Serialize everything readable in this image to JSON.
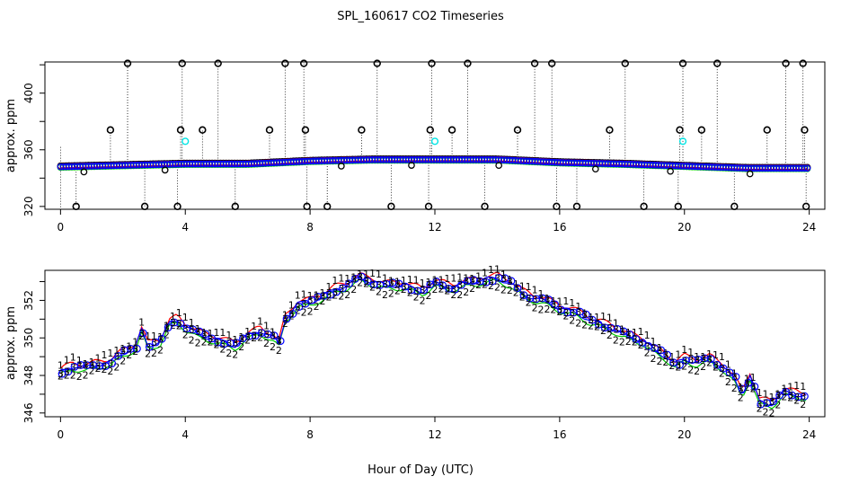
{
  "title": "SPL_160617  CO2 Timeseries",
  "colors": {
    "series1": "#ff0000",
    "series2": "#00cc00",
    "series3": "#0000ff",
    "outline": "#000000",
    "cyan": "#00e5e5"
  },
  "chart_data": [
    {
      "type": "scatter",
      "panel": "top",
      "ylabel": "approx. ppm",
      "xlabel": "",
      "xlim": [
        -0.5,
        24.5
      ],
      "ylim": [
        318,
        422
      ],
      "xticks": [
        0,
        4,
        8,
        12,
        16,
        20,
        24
      ],
      "yticks": [
        320,
        360,
        400
      ],
      "baseline": [
        [
          0,
          348
        ],
        [
          1,
          348.5
        ],
        [
          2,
          349
        ],
        [
          3,
          349.5
        ],
        [
          4,
          350
        ],
        [
          6,
          350
        ],
        [
          7,
          351
        ],
        [
          8,
          352
        ],
        [
          10,
          353
        ],
        [
          12,
          353
        ],
        [
          14,
          353
        ],
        [
          16,
          351
        ],
        [
          18,
          350
        ],
        [
          20,
          348.5
        ],
        [
          22,
          347
        ],
        [
          24,
          347
        ]
      ],
      "spikes_high": [
        2.15,
        3.9,
        5.05,
        7.2,
        7.8,
        10.15,
        11.9,
        13.05,
        15.2,
        15.75,
        18.1,
        19.95,
        21.05,
        23.25,
        23.8
      ],
      "spikes_mid": [
        1.6,
        3.85,
        4.55,
        6.7,
        7.85,
        9.65,
        11.85,
        12.55,
        14.65,
        17.6,
        19.85,
        20.55,
        22.65,
        23.85
      ],
      "spikes_low": [
        0.5,
        2.7,
        3.75,
        5.6,
        7.9,
        8.55,
        10.6,
        11.8,
        13.6,
        15.9,
        16.55,
        18.7,
        19.8,
        21.6,
        23.9
      ],
      "cyan_points": [
        [
          4.0,
          366
        ],
        [
          12.0,
          366
        ],
        [
          19.95,
          366
        ]
      ],
      "high_value": 421,
      "mid_value": 374,
      "low_value": 320
    },
    {
      "type": "line",
      "panel": "bottom",
      "ylabel": "approx. ppm",
      "xlabel": "Hour of Day (UTC)",
      "xlim": [
        -0.5,
        24.5
      ],
      "ylim": [
        345.8,
        353.6
      ],
      "xticks": [
        0,
        4,
        8,
        12,
        16,
        20,
        24
      ],
      "yticks": [
        346,
        348,
        350,
        352
      ],
      "series": [
        {
          "name": "1",
          "offset": 0.35
        },
        {
          "name": "2",
          "offset": -0.35
        },
        {
          "name": "3",
          "offset": 0.0
        }
      ],
      "profile": [
        [
          0.0,
          348.2
        ],
        [
          0.4,
          348.5
        ],
        [
          0.8,
          348.4
        ],
        [
          1.2,
          348.6
        ],
        [
          1.6,
          348.7
        ],
        [
          2.0,
          349.2
        ],
        [
          2.4,
          349.5
        ],
        [
          2.6,
          350.4
        ],
        [
          2.8,
          349.6
        ],
        [
          3.2,
          349.8
        ],
        [
          3.5,
          350.8
        ],
        [
          3.75,
          351.0
        ],
        [
          4.0,
          350.6
        ],
        [
          4.4,
          350.2
        ],
        [
          5.0,
          349.9
        ],
        [
          5.6,
          349.6
        ],
        [
          6.0,
          350.1
        ],
        [
          6.4,
          350.4
        ],
        [
          6.8,
          350.0
        ],
        [
          7.0,
          349.7
        ],
        [
          7.2,
          351.0
        ],
        [
          7.6,
          351.8
        ],
        [
          8.0,
          351.9
        ],
        [
          8.4,
          352.2
        ],
        [
          8.8,
          352.6
        ],
        [
          9.2,
          352.8
        ],
        [
          9.6,
          353.2
        ],
        [
          10.0,
          353.0
        ],
        [
          10.4,
          352.8
        ],
        [
          11.0,
          352.8
        ],
        [
          11.6,
          352.5
        ],
        [
          12.0,
          352.9
        ],
        [
          12.6,
          352.7
        ],
        [
          13.0,
          352.9
        ],
        [
          13.6,
          353.1
        ],
        [
          14.0,
          353.2
        ],
        [
          14.4,
          352.9
        ],
        [
          14.8,
          352.4
        ],
        [
          15.2,
          352.1
        ],
        [
          15.6,
          351.9
        ],
        [
          16.0,
          351.6
        ],
        [
          16.6,
          351.3
        ],
        [
          17.0,
          350.9
        ],
        [
          17.6,
          350.6
        ],
        [
          18.0,
          350.2
        ],
        [
          18.6,
          349.9
        ],
        [
          19.0,
          349.4
        ],
        [
          19.4,
          349.0
        ],
        [
          19.7,
          348.6
        ],
        [
          20.0,
          348.9
        ],
        [
          20.4,
          348.7
        ],
        [
          20.8,
          348.9
        ],
        [
          21.2,
          348.5
        ],
        [
          21.6,
          347.8
        ],
        [
          21.85,
          347.0
        ],
        [
          22.1,
          348.0
        ],
        [
          22.4,
          346.6
        ],
        [
          22.8,
          346.5
        ],
        [
          23.2,
          347.1
        ],
        [
          23.6,
          347.0
        ],
        [
          23.9,
          346.9
        ]
      ]
    }
  ]
}
